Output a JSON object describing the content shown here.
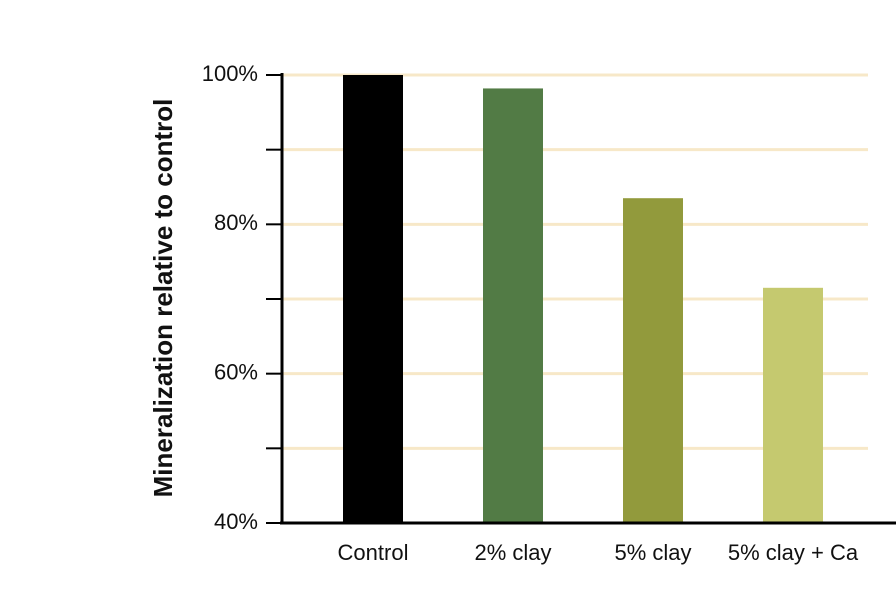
{
  "chart_data": {
    "type": "bar",
    "title": "",
    "xlabel": "",
    "ylabel": "Mineralization relative to control",
    "categories": [
      "Control",
      "2% clay",
      "5% clay",
      "5% clay + Ca"
    ],
    "values": [
      100,
      98.2,
      83.5,
      71.5
    ],
    "ylim": [
      40,
      100
    ],
    "yticks": [
      {
        "value": 40,
        "label": "40%"
      },
      {
        "value": 60,
        "label": "60%"
      },
      {
        "value": 80,
        "label": "80%"
      },
      {
        "value": 100,
        "label": "100%"
      }
    ],
    "minor_ticks": [
      50,
      70,
      90
    ],
    "gridlines": [
      50,
      60,
      70,
      80,
      90,
      100
    ],
    "grid": true,
    "bar_colors": [
      "#000000",
      "#527b45",
      "#929a3c",
      "#c5c96f"
    ],
    "grid_color": "#f7e8c8"
  }
}
